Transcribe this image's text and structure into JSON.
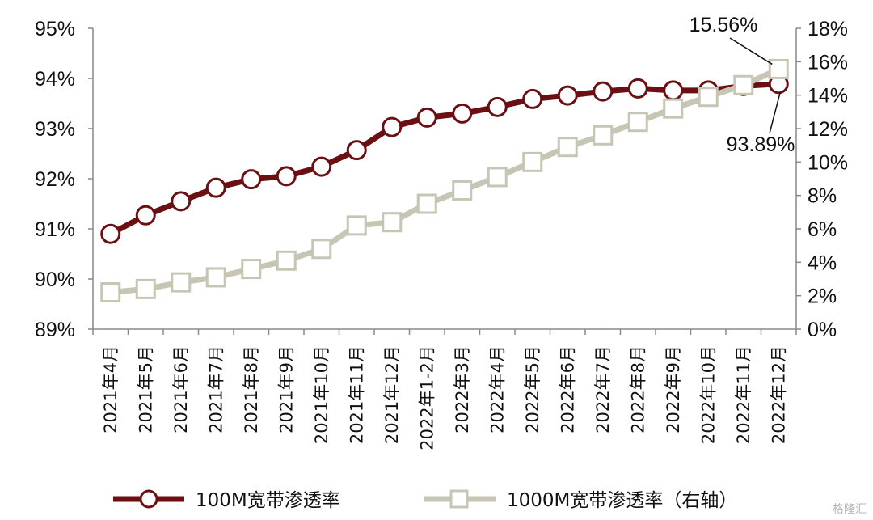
{
  "chart_data": {
    "type": "line",
    "categories": [
      "2021年4月",
      "2021年5月",
      "2021年6月",
      "2021年7月",
      "2021年8月",
      "2021年9月",
      "2021年10月",
      "2021年11月",
      "2021年12月",
      "2022年1-2月",
      "2022年3月",
      "2022年4月",
      "2022年5月",
      "2022年6月",
      "2022年7月",
      "2022年8月",
      "2022年9月",
      "2022年10月",
      "2022年11月",
      "2022年12月"
    ],
    "series": [
      {
        "name": "100M宽带渗透率",
        "axis": "left",
        "color": "#6B0F12",
        "marker": "circle",
        "values": [
          90.9,
          91.27,
          91.55,
          91.82,
          91.99,
          92.05,
          92.24,
          92.57,
          93.03,
          93.22,
          93.3,
          93.43,
          93.59,
          93.66,
          93.74,
          93.8,
          93.76,
          93.76,
          93.85,
          93.89
        ]
      },
      {
        "name": "1000M宽带渗透率（右轴）",
        "axis": "right",
        "color": "#C7C6B5",
        "marker": "square",
        "values": [
          2.2,
          2.4,
          2.8,
          3.1,
          3.6,
          4.1,
          4.8,
          6.2,
          6.4,
          7.5,
          8.3,
          9.1,
          10.0,
          10.9,
          11.6,
          12.4,
          13.2,
          13.9,
          14.6,
          15.56
        ]
      }
    ],
    "y_left": {
      "min": 89,
      "max": 95,
      "step": 1,
      "ticks": [
        "89%",
        "90%",
        "91%",
        "92%",
        "93%",
        "94%",
        "95%"
      ]
    },
    "y_right": {
      "min": 0,
      "max": 18,
      "step": 2,
      "ticks": [
        "0%",
        "2%",
        "4%",
        "6%",
        "8%",
        "10%",
        "12%",
        "14%",
        "16%",
        "18%"
      ]
    },
    "annotations": [
      {
        "text": "15.56%",
        "series": 1,
        "index": 19
      },
      {
        "text": "93.89%",
        "series": 0,
        "index": 19
      }
    ],
    "legend": {
      "position": "bottom"
    },
    "grid": false
  },
  "watermark": "格隆汇"
}
